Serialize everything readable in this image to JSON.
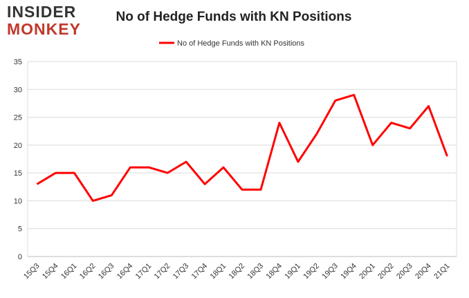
{
  "logo": {
    "line1": "INSIDER",
    "line2": "MONKEY"
  },
  "chart_data": {
    "type": "line",
    "title": "No of Hedge Funds with KN Positions",
    "categories": [
      "15Q3",
      "15Q4",
      "16Q1",
      "16Q2",
      "16Q3",
      "16Q4",
      "17Q1",
      "17Q2",
      "17Q3",
      "17Q4",
      "18Q1",
      "18Q2",
      "18Q3",
      "18Q4",
      "19Q1",
      "19Q2",
      "19Q3",
      "19Q4",
      "20Q1",
      "20Q2",
      "20Q3",
      "20Q4",
      "21Q1"
    ],
    "series": [
      {
        "name": "No of Hedge Funds with KN Positions",
        "color": "#ff0000",
        "values": [
          13,
          15,
          15,
          10,
          11,
          16,
          16,
          15,
          17,
          13,
          16,
          12,
          12,
          24,
          17,
          22,
          28,
          29,
          20,
          24,
          23,
          27,
          18
        ]
      }
    ],
    "ylim": [
      0,
      35
    ],
    "yticks": [
      0,
      5,
      10,
      15,
      20,
      25,
      30,
      35
    ],
    "grid": true,
    "legend": "top"
  }
}
